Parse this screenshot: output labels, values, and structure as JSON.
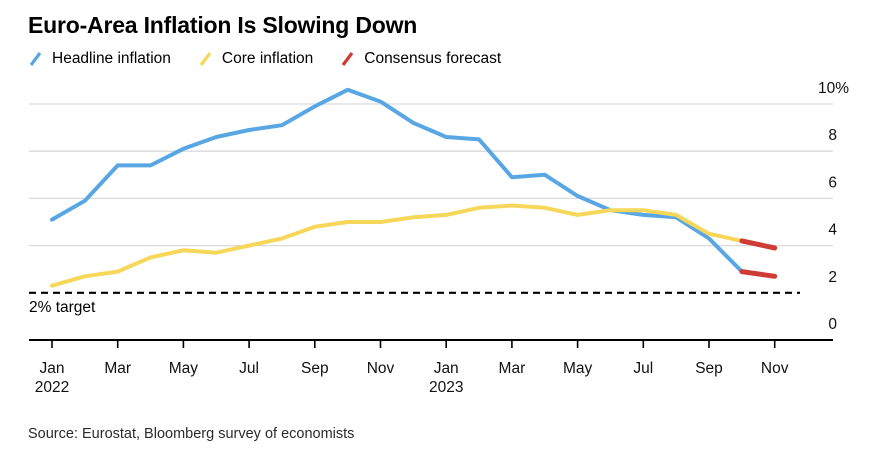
{
  "source": "Source: Eurostat, Bloomberg survey of economists",
  "legend": {
    "items": [
      {
        "label": "Headline inflation",
        "color": "#58a6e4"
      },
      {
        "label": "Core inflation",
        "color": "#f6d75a"
      },
      {
        "label": "Consensus forecast",
        "color": "#ce3c35"
      }
    ]
  },
  "chart_data": {
    "type": "line",
    "title": "Euro-Area Inflation Is Slowing Down",
    "x": [
      "Jan 2022",
      "Feb 2022",
      "Mar 2022",
      "Apr 2022",
      "May 2022",
      "Jun 2022",
      "Jul 2022",
      "Aug 2022",
      "Sep 2022",
      "Oct 2022",
      "Nov 2022",
      "Dec 2022",
      "Jan 2023",
      "Feb 2023",
      "Mar 2023",
      "Apr 2023",
      "May 2023",
      "Jun 2023",
      "Jul 2023",
      "Aug 2023",
      "Sep 2023",
      "Oct 2023",
      "Nov 2023"
    ],
    "series": [
      {
        "name": "Headline inflation",
        "color": "#58a6e4",
        "start_index": 0,
        "width": 4,
        "values": [
          5.1,
          5.9,
          7.4,
          7.4,
          8.1,
          8.6,
          8.9,
          9.1,
          9.9,
          10.6,
          10.1,
          9.2,
          8.6,
          8.5,
          6.9,
          7.0,
          6.1,
          5.5,
          5.3,
          5.2,
          4.3,
          2.9
        ]
      },
      {
        "name": "Core inflation",
        "color": "#f6d75a",
        "start_index": 0,
        "width": 4,
        "values": [
          2.3,
          2.7,
          2.9,
          3.5,
          3.8,
          3.7,
          4.0,
          4.3,
          4.8,
          5.0,
          5.0,
          5.2,
          5.3,
          5.6,
          5.7,
          5.6,
          5.3,
          5.5,
          5.5,
          5.3,
          4.5,
          4.2
        ]
      },
      {
        "name": "Consensus forecast (core)",
        "color": "#ce3c35",
        "start_index": 21,
        "width": 5,
        "values": [
          4.2,
          3.9
        ]
      },
      {
        "name": "Consensus forecast (headline)",
        "color": "#ce3c35",
        "start_index": 21,
        "width": 5,
        "values": [
          2.9,
          2.7
        ]
      }
    ],
    "y_axis": {
      "side": "right",
      "range": [
        0,
        10.8
      ],
      "ticks": [
        {
          "label": "10%",
          "value": 10
        },
        {
          "label": "8",
          "value": 8
        },
        {
          "label": "6",
          "value": 6
        },
        {
          "label": "4",
          "value": 4
        },
        {
          "label": "2",
          "value": 2
        },
        {
          "label": "0",
          "value": 0
        }
      ]
    },
    "x_axis": {
      "ticks": [
        {
          "label": "Jan",
          "sub": "2022",
          "index": 0
        },
        {
          "label": "Mar",
          "index": 2
        },
        {
          "label": "May",
          "index": 4
        },
        {
          "label": "Jul",
          "index": 6
        },
        {
          "label": "Sep",
          "index": 8
        },
        {
          "label": "Nov",
          "index": 10
        },
        {
          "label": "Jan",
          "sub": "2023",
          "index": 12
        },
        {
          "label": "Mar",
          "index": 14
        },
        {
          "label": "May",
          "index": 16
        },
        {
          "label": "Jul",
          "index": 18
        },
        {
          "label": "Sep",
          "index": 20
        },
        {
          "label": "Nov",
          "index": 22
        }
      ]
    },
    "target_line": {
      "value": 2,
      "label": "2% target"
    },
    "grid": "horizontal",
    "colors": {
      "gridline": "#d9d9d9",
      "axis": "#000000",
      "target": "#000000"
    }
  }
}
